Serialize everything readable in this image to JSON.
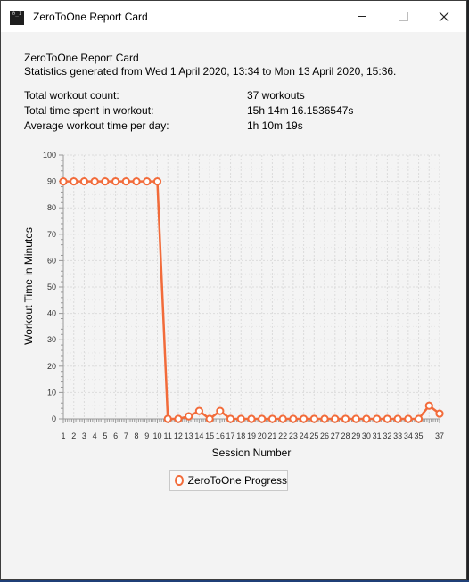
{
  "window": {
    "title": "ZeroToOne Report Card",
    "app_icon_text": "0_1"
  },
  "header": {
    "title": "ZeroToOne Report Card",
    "subtitle": "Statistics generated from Wed 1 April 2020,  13:34 to Mon 13 April 2020,  15:36."
  },
  "stats": [
    {
      "label": "Total workout count:",
      "value": "37 workouts"
    },
    {
      "label": "Total time spent in workout:",
      "value": "15h 14m 16.1536547s"
    },
    {
      "label": "Average workout time per day:",
      "value": "1h 10m 19s"
    }
  ],
  "chart_data": {
    "type": "line",
    "xlabel": "Session Number",
    "ylabel": "Workout Time in Minutes",
    "xlim": [
      1,
      37
    ],
    "ylim": [
      0,
      100
    ],
    "y_ticks": [
      0,
      10,
      20,
      30,
      40,
      50,
      60,
      70,
      80,
      90,
      100
    ],
    "x_tick_labels": [
      "1",
      "2",
      "3",
      "4",
      "5",
      "6",
      "7",
      "8",
      "9",
      "10",
      "11",
      "12",
      "13",
      "14",
      "15",
      "16",
      "17",
      "18",
      "19",
      "20",
      "21",
      "22",
      "23",
      "24",
      "25",
      "26",
      "27",
      "28",
      "29",
      "30",
      "31",
      "32",
      "33",
      "34",
      "35",
      "37"
    ],
    "grid": true,
    "legend_position": "bottom-center",
    "series": [
      {
        "name": "ZeroToOne Progress",
        "color": "#f26b3a",
        "x": [
          1,
          2,
          3,
          4,
          5,
          6,
          7,
          8,
          9,
          10,
          11,
          12,
          13,
          14,
          15,
          16,
          17,
          18,
          19,
          20,
          21,
          22,
          23,
          24,
          25,
          26,
          27,
          28,
          29,
          30,
          31,
          32,
          33,
          34,
          35,
          36,
          37
        ],
        "values": [
          90,
          90,
          90,
          90,
          90,
          90,
          90,
          90,
          90,
          90,
          0,
          0,
          1,
          3,
          0,
          3,
          0,
          0,
          0,
          0,
          0,
          0,
          0,
          0,
          0,
          0,
          0,
          0,
          0,
          0,
          0,
          0,
          0,
          0,
          0,
          5,
          2
        ]
      }
    ]
  }
}
